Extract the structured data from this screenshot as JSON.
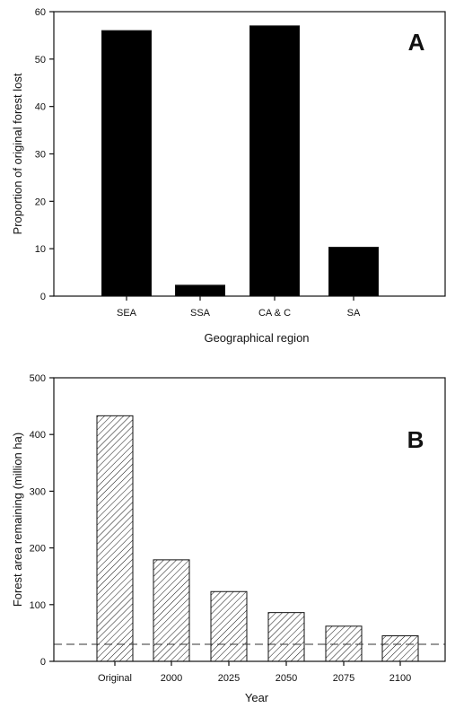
{
  "chart_data": [
    {
      "type": "bar",
      "panel_label": "A",
      "categories": [
        "SEA",
        "SSA",
        "CA & C",
        "SA"
      ],
      "values": [
        56,
        2.3,
        57,
        10.3
      ],
      "xlabel": "Geographical region",
      "ylabel": "Proportion of original forest lost",
      "ylim": [
        0,
        60
      ],
      "yticks": [
        0,
        10,
        20,
        30,
        40,
        50,
        60
      ],
      "bar_style": "solid",
      "bar_color": "#000000"
    },
    {
      "type": "bar",
      "panel_label": "B",
      "categories": [
        "Original",
        "2000",
        "2025",
        "2050",
        "2075",
        "2100"
      ],
      "values": [
        433,
        179,
        123,
        86,
        62,
        45
      ],
      "xlabel": "Year",
      "ylabel": "Forest area remaining (million ha)",
      "ylim": [
        0,
        500
      ],
      "yticks": [
        0,
        100,
        200,
        300,
        400,
        500
      ],
      "bar_style": "hatched",
      "reference_line": {
        "y": 30,
        "style": "dashed"
      }
    }
  ]
}
